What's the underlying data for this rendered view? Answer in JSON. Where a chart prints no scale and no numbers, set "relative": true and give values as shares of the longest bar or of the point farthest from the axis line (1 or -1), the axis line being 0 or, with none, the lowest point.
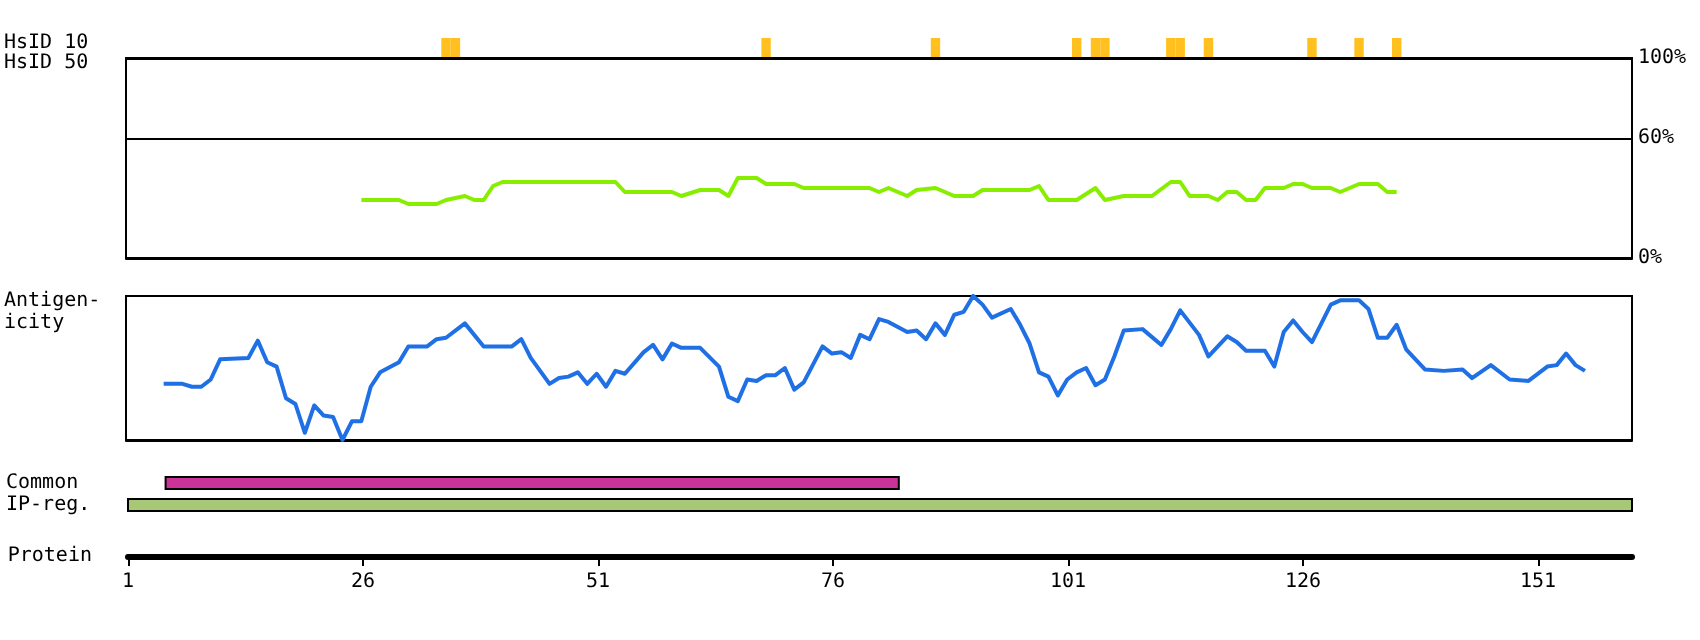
{
  "chart_data": [
    {
      "type": "bar",
      "ylabel": "HsID 10",
      "relative": true,
      "tick_labels": false,
      "color": "#ffc020",
      "xlim": [
        1,
        161
      ],
      "x": [
        35,
        36,
        69,
        87,
        102,
        104,
        105,
        112,
        113,
        116,
        127,
        132,
        136
      ],
      "values": [
        1,
        1,
        1,
        1,
        1,
        1,
        1,
        1,
        1,
        1,
        1,
        1,
        1
      ]
    },
    {
      "type": "line",
      "ylabel": "HsID 50",
      "tick_labels": "y",
      "marker": "none",
      "xlim": [
        1,
        161
      ],
      "ylim": [
        0,
        100
      ],
      "yticks": [
        {
          "value": 0,
          "label": "0%"
        },
        {
          "value": 60,
          "label": "60%"
        },
        {
          "value": 100,
          "label": "100%"
        }
      ],
      "ref_lines": [
        {
          "axis": "y",
          "value": 60,
          "color": "#000000"
        }
      ],
      "color": "#88ee00",
      "x": [
        26,
        30,
        31,
        34,
        35,
        37,
        38,
        39,
        40,
        41,
        53,
        54,
        59,
        60,
        62,
        64,
        65,
        66,
        68,
        69,
        72,
        73,
        80,
        81,
        82,
        84,
        85,
        87,
        89,
        91,
        92,
        97,
        98,
        99,
        102,
        104,
        105,
        107,
        110,
        112,
        113,
        114,
        116,
        117,
        118,
        119,
        120,
        121,
        122,
        124,
        125,
        126,
        127,
        129,
        130,
        131,
        132,
        134,
        135,
        136
      ],
      "values": [
        29,
        29,
        27,
        27,
        29,
        31,
        29,
        29,
        36,
        38,
        38,
        33,
        33,
        31,
        34,
        34,
        31,
        40,
        40,
        37,
        37,
        35,
        35,
        33,
        35,
        31,
        34,
        35,
        31,
        31,
        34,
        34,
        36,
        29,
        29,
        35,
        29,
        31,
        31,
        38,
        38,
        31,
        31,
        29,
        33,
        33,
        29,
        29,
        35,
        35,
        37,
        37,
        35,
        35,
        33,
        35,
        37,
        37,
        33,
        33
      ]
    },
    {
      "type": "line",
      "ylabel": "Antigen-\nicity",
      "relative": true,
      "tick_labels": false,
      "marker": "none",
      "xlim": [
        1,
        161
      ],
      "color": "#1f6fe5",
      "x": [
        5,
        7,
        8,
        9,
        10,
        11,
        14,
        15,
        16,
        17,
        18,
        19,
        20,
        21,
        22,
        23,
        24,
        25,
        26,
        27,
        28,
        30,
        31,
        33,
        34,
        35,
        37,
        39,
        42,
        43,
        44,
        46,
        47,
        48,
        49,
        50,
        51,
        52,
        53,
        54,
        56,
        57,
        58,
        59,
        60,
        62,
        64,
        65,
        66,
        67,
        68,
        69,
        70,
        71,
        72,
        73,
        75,
        76,
        77,
        78,
        79,
        80,
        81,
        82,
        84,
        85,
        86,
        87,
        88,
        89,
        90,
        91,
        92,
        93,
        95,
        96,
        97,
        98,
        99,
        100,
        101,
        102,
        103,
        104,
        105,
        106,
        107,
        109,
        111,
        112,
        113,
        115,
        116,
        118,
        119,
        120,
        122,
        123,
        124,
        125,
        126,
        127,
        129,
        130,
        132,
        133,
        134,
        135,
        136,
        137,
        139,
        141,
        143,
        144,
        146,
        148,
        150,
        152,
        153,
        154,
        155,
        156
      ],
      "values": [
        0.39,
        0.39,
        0.37,
        0.37,
        0.42,
        0.56,
        0.57,
        0.69,
        0.54,
        0.51,
        0.29,
        0.25,
        0.05,
        0.24,
        0.17,
        0.16,
        0,
        0.13,
        0.13,
        0.37,
        0.47,
        0.54,
        0.65,
        0.65,
        0.7,
        0.71,
        0.81,
        0.65,
        0.65,
        0.7,
        0.57,
        0.39,
        0.43,
        0.44,
        0.47,
        0.39,
        0.46,
        0.37,
        0.48,
        0.46,
        0.61,
        0.66,
        0.56,
        0.67,
        0.64,
        0.64,
        0.51,
        0.3,
        0.27,
        0.42,
        0.41,
        0.45,
        0.45,
        0.5,
        0.35,
        0.4,
        0.65,
        0.6,
        0.61,
        0.57,
        0.73,
        0.7,
        0.84,
        0.82,
        0.75,
        0.76,
        0.7,
        0.81,
        0.73,
        0.87,
        0.89,
        1,
        0.94,
        0.85,
        0.91,
        0.8,
        0.67,
        0.47,
        0.44,
        0.31,
        0.42,
        0.47,
        0.5,
        0.38,
        0.42,
        0.58,
        0.76,
        0.77,
        0.66,
        0.77,
        0.9,
        0.73,
        0.58,
        0.72,
        0.68,
        0.62,
        0.62,
        0.51,
        0.75,
        0.83,
        0.75,
        0.68,
        0.94,
        0.97,
        0.97,
        0.91,
        0.71,
        0.71,
        0.8,
        0.63,
        0.49,
        0.48,
        0.49,
        0.43,
        0.52,
        0.42,
        0.41,
        0.51,
        0.52,
        0.6,
        0.52,
        0.48
      ]
    },
    {
      "type": "bar",
      "orientation": "horizontal",
      "xlabel": "Protein",
      "categories": [
        "Common",
        "IP-reg."
      ],
      "base": [
        5,
        1
      ],
      "values": [
        78,
        160
      ],
      "colors": [
        "#cc3399",
        "#a8c878"
      ],
      "xlim": [
        1,
        161
      ],
      "xticks": [
        1,
        26,
        51,
        76,
        101,
        126,
        151
      ]
    }
  ]
}
